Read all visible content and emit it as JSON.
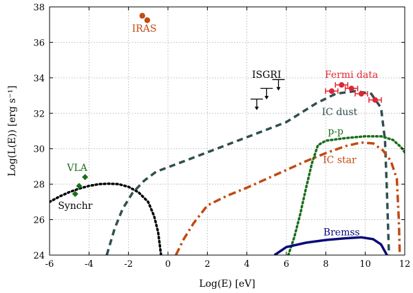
{
  "chart_data": {
    "type": "line",
    "xlabel": "Log(E) [eV]",
    "ylabel": "Log(L(E)) [erg s⁻¹]",
    "xlim": [
      -6,
      12
    ],
    "ylim": [
      24,
      38
    ],
    "grid": true,
    "xticks": [
      "-6",
      "-4",
      "-2",
      "0",
      "2",
      "4",
      "6",
      "8",
      "10",
      "12"
    ],
    "yticks": [
      "24",
      "26",
      "28",
      "30",
      "32",
      "34",
      "36",
      "38"
    ],
    "series": [
      {
        "name": "Synchr",
        "color": "#000000",
        "style": "dotted",
        "points": [
          [
            -6,
            27.0
          ],
          [
            -5.5,
            27.3
          ],
          [
            -5,
            27.55
          ],
          [
            -4.5,
            27.75
          ],
          [
            -4,
            27.9
          ],
          [
            -3.5,
            28.0
          ],
          [
            -3,
            28.03
          ],
          [
            -2.5,
            28.0
          ],
          [
            -2,
            27.85
          ],
          [
            -1.5,
            27.55
          ],
          [
            -1,
            27.0
          ],
          [
            -0.7,
            26.2
          ],
          [
            -0.5,
            25.3
          ],
          [
            -0.35,
            24.0
          ]
        ]
      },
      {
        "name": "IC dust",
        "color": "#2f4f4f",
        "style": "dashed",
        "points": [
          [
            -3.1,
            24.0
          ],
          [
            -2.7,
            25.5
          ],
          [
            -2.3,
            26.6
          ],
          [
            -1.8,
            27.5
          ],
          [
            -1.2,
            28.2
          ],
          [
            -0.6,
            28.7
          ],
          [
            0,
            28.95
          ],
          [
            2,
            29.8
          ],
          [
            4,
            30.65
          ],
          [
            6,
            31.5
          ],
          [
            7.5,
            32.55
          ],
          [
            8.5,
            33.1
          ],
          [
            9.5,
            33.25
          ],
          [
            10.3,
            33.1
          ],
          [
            10.8,
            32.3
          ],
          [
            11.0,
            30.5
          ],
          [
            11.1,
            27.5
          ],
          [
            11.2,
            24.0
          ]
        ]
      },
      {
        "name": "IC star",
        "color": "#c04a12",
        "style": "dashdot",
        "points": [
          [
            0.4,
            24.0
          ],
          [
            0.8,
            24.9
          ],
          [
            1.3,
            25.8
          ],
          [
            2.0,
            26.8
          ],
          [
            3,
            27.35
          ],
          [
            4,
            27.8
          ],
          [
            5,
            28.3
          ],
          [
            6,
            28.8
          ],
          [
            7,
            29.3
          ],
          [
            8,
            29.75
          ],
          [
            9,
            30.15
          ],
          [
            9.8,
            30.35
          ],
          [
            10.4,
            30.3
          ],
          [
            10.9,
            29.9
          ],
          [
            11.3,
            29.3
          ],
          [
            11.6,
            28.3
          ],
          [
            11.7,
            26.0
          ],
          [
            11.75,
            24.0
          ]
        ]
      },
      {
        "name": "p-p",
        "color": "#1a6e1a",
        "style": "dotted",
        "points": [
          [
            6.1,
            24.0
          ],
          [
            6.4,
            25.0
          ],
          [
            6.7,
            26.3
          ],
          [
            7.0,
            27.8
          ],
          [
            7.3,
            29.2
          ],
          [
            7.6,
            30.2
          ],
          [
            8,
            30.45
          ],
          [
            9,
            30.6
          ],
          [
            10,
            30.7
          ],
          [
            10.8,
            30.7
          ],
          [
            11.4,
            30.5
          ],
          [
            11.8,
            30.1
          ],
          [
            12,
            29.8
          ]
        ]
      },
      {
        "name": "Bremss",
        "color": "#0a0a78",
        "style": "solid",
        "points": [
          [
            5.4,
            24.0
          ],
          [
            6.0,
            24.45
          ],
          [
            7,
            24.7
          ],
          [
            8,
            24.85
          ],
          [
            9,
            24.95
          ],
          [
            9.8,
            25.0
          ],
          [
            10.4,
            24.9
          ],
          [
            10.8,
            24.6
          ],
          [
            11.0,
            24.2
          ],
          [
            11.1,
            24.0
          ]
        ]
      }
    ],
    "data_points": [
      {
        "name": "IRAS",
        "color": "#c04a12",
        "points": [
          [
            -1.3,
            37.5
          ],
          [
            -1.05,
            37.25
          ]
        ]
      },
      {
        "name": "VLA",
        "color": "#1a6e1a",
        "points": [
          [
            -4.2,
            28.4
          ],
          [
            -4.5,
            27.9
          ],
          [
            -4.7,
            27.45
          ]
        ]
      },
      {
        "name": "Fermi data",
        "color": "#e02630",
        "points": [
          [
            8.3,
            33.25
          ],
          [
            8.8,
            33.6
          ],
          [
            9.3,
            33.4
          ],
          [
            9.8,
            33.1
          ],
          [
            10.5,
            32.75
          ]
        ]
      }
    ],
    "upper_limits": {
      "name": "ISGRI",
      "color": "#000000",
      "points": [
        [
          4.5,
          32.8
        ],
        [
          5.0,
          33.4
        ],
        [
          5.6,
          33.9
        ]
      ]
    },
    "annotations": [
      {
        "text": "IRAS",
        "color": "#c04a12",
        "x": -1.2,
        "y": 36.6
      },
      {
        "text": "Fermi data",
        "color": "#e02630",
        "x": 9.3,
        "y": 34.0
      },
      {
        "text": "ISGRI",
        "color": "#000000",
        "x": 5.0,
        "y": 34.0
      },
      {
        "text": "IC dust",
        "color": "#2f4f4f",
        "x": 8.7,
        "y": 31.9
      },
      {
        "text": "p-p",
        "color": "#1a6e1a",
        "x": 8.5,
        "y": 30.8
      },
      {
        "text": "IC star",
        "color": "#c04a12",
        "x": 8.7,
        "y": 29.2
      },
      {
        "text": "VLA",
        "color": "#1a6e1a",
        "x": -4.6,
        "y": 28.75
      },
      {
        "text": "Synchr",
        "color": "#000000",
        "x": -4.7,
        "y": 26.6
      },
      {
        "text": "Bremss",
        "color": "#0a0a78",
        "x": 8.8,
        "y": 25.1
      }
    ]
  }
}
